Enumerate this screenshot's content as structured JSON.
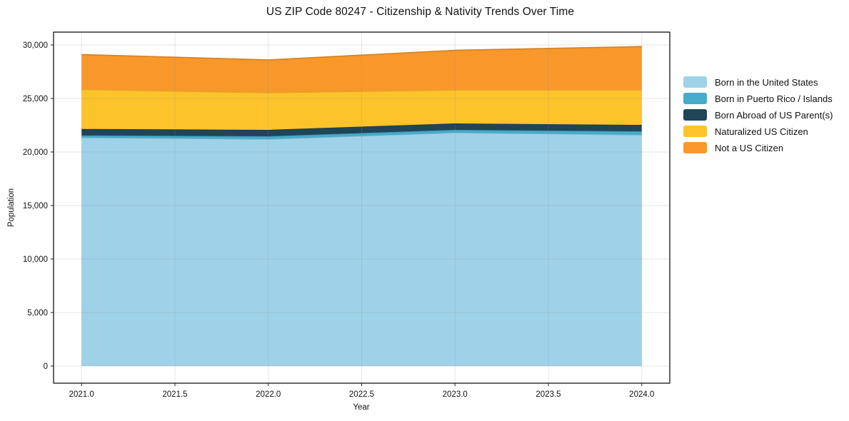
{
  "chart_data": {
    "type": "area",
    "stacked": true,
    "title": "US ZIP Code 80247 - Citizenship & Nativity Trends Over Time",
    "xlabel": "Year",
    "ylabel": "Population",
    "x": [
      2021,
      2022,
      2023,
      2024
    ],
    "series": [
      {
        "name": "Born in the United States",
        "color": "#9FD2E8",
        "values": [
          21350,
          21200,
          21800,
          21600
        ]
      },
      {
        "name": "Born in Puerto Rico / Islands",
        "color": "#45ACCB",
        "values": [
          200,
          270,
          270,
          330
        ]
      },
      {
        "name": "Born Abroad of US Parent(s)",
        "color": "#1F4557",
        "values": [
          600,
          600,
          600,
          600
        ]
      },
      {
        "name": "Naturalized US Citizen",
        "color": "#FDC32B",
        "values": [
          3700,
          3470,
          3130,
          3270
        ]
      },
      {
        "name": "Not a US Citizen",
        "color": "#F8982B",
        "values": [
          3250,
          3060,
          3700,
          4050
        ]
      }
    ],
    "xlim": [
      2020.85,
      2024.15
    ],
    "ylim": [
      -1600,
      31200
    ],
    "xticks": {
      "values": [
        2021.0,
        2021.5,
        2022.0,
        2022.5,
        2023.0,
        2023.5,
        2024.0
      ],
      "labels": [
        "2021.0",
        "2021.5",
        "2022.0",
        "2022.5",
        "2023.0",
        "2023.5",
        "2024.0"
      ]
    },
    "yticks": {
      "values": [
        0,
        5000,
        10000,
        15000,
        20000,
        25000,
        30000
      ],
      "labels": [
        "0",
        "5,000",
        "10,000",
        "15,000",
        "20,000",
        "25,000",
        "30,000"
      ]
    },
    "grid": true,
    "legend_position": "right-outside"
  }
}
